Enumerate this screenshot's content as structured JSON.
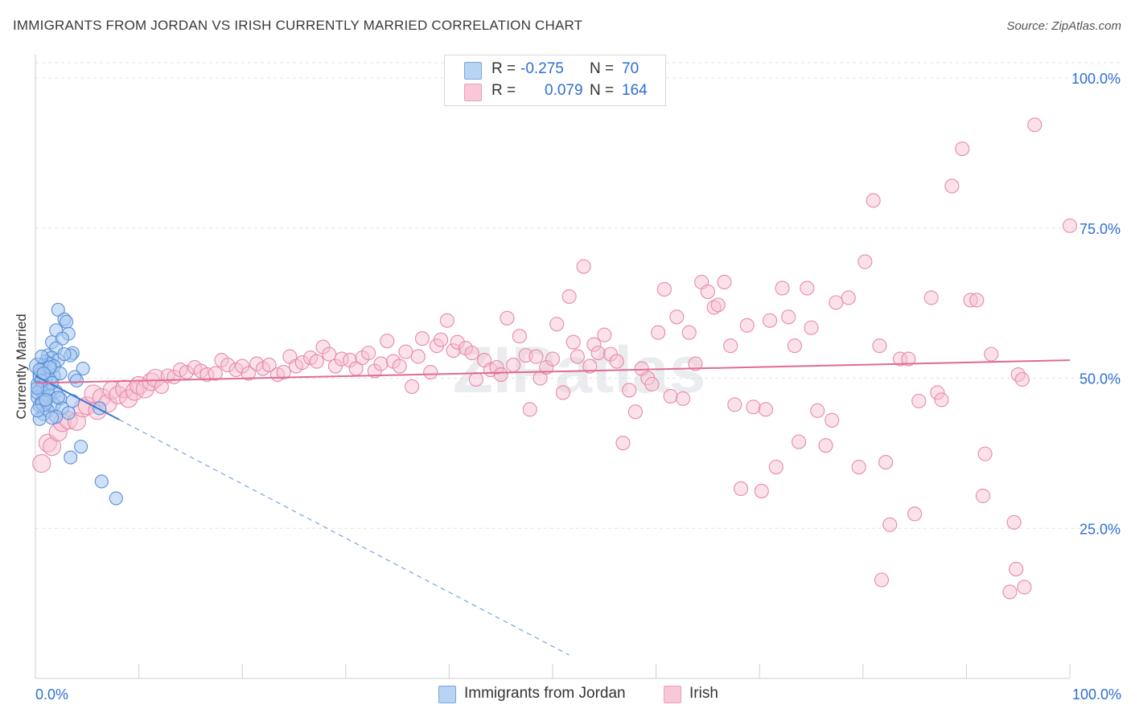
{
  "title": "IMMIGRANTS FROM JORDAN VS IRISH CURRENTLY MARRIED CORRELATION CHART",
  "source": "Source: ZipAtlas.com",
  "watermark": "ZIPatlas",
  "legend": {
    "series1": {
      "r_label": "R =",
      "r_value": "-0.275",
      "n_label": "N =",
      "n_value": "70"
    },
    "series2": {
      "r_label": "R =",
      "r_value": "0.079",
      "n_label": "N =",
      "n_value": "164"
    }
  },
  "colors": {
    "blue_fill": "#a8c8f0",
    "blue_stroke": "#5b8fd8",
    "blue_line": "#3a78d4",
    "pink_fill": "#f7bfd0",
    "pink_stroke": "#e78aa8",
    "pink_line": "#e06a93",
    "accent_text": "#2e6fd1"
  },
  "chart_data": {
    "type": "scatter",
    "title": "IMMIGRANTS FROM JORDAN VS IRISH CURRENTLY MARRIED CORRELATION CHART",
    "xlabel": "",
    "ylabel": "Currently Married",
    "xlim": [
      0,
      100
    ],
    "ylim": [
      0,
      100
    ],
    "x_tick_labels": [
      "0.0%",
      "100.0%"
    ],
    "y_tick_labels": [
      "25.0%",
      "50.0%",
      "75.0%",
      "100.0%"
    ],
    "y_ticks": [
      25,
      50,
      75,
      100
    ],
    "grid": true,
    "series": [
      {
        "name": "Immigrants from Jordan",
        "r": -0.275,
        "n": 70,
        "trend": {
          "x0": 0,
          "y0": 50.4,
          "x1": 8.1,
          "y1": 43.1,
          "dashed_to_x": 51.6
        },
        "points": [
          [
            2.2,
            61.4
          ],
          [
            2.8,
            59.8
          ],
          [
            3.0,
            59.4
          ],
          [
            2.0,
            58.0
          ],
          [
            3.2,
            57.4
          ],
          [
            1.6,
            56.0
          ],
          [
            2.6,
            56.6
          ],
          [
            2.0,
            55.0
          ],
          [
            3.6,
            54.2
          ],
          [
            1.2,
            53.8
          ],
          [
            1.6,
            53.4
          ],
          [
            3.4,
            53.8
          ],
          [
            1.0,
            52.8
          ],
          [
            2.2,
            53.0
          ],
          [
            0.8,
            52.2
          ],
          [
            4.6,
            51.6
          ],
          [
            0.6,
            51.2
          ],
          [
            1.2,
            51.0
          ],
          [
            0.4,
            50.6
          ],
          [
            1.8,
            50.4
          ],
          [
            0.8,
            50.0
          ],
          [
            3.8,
            50.2
          ],
          [
            4.0,
            49.6
          ],
          [
            1.4,
            49.8
          ],
          [
            0.6,
            49.4
          ],
          [
            0.2,
            49.0
          ],
          [
            1.0,
            48.6
          ],
          [
            0.4,
            48.0
          ],
          [
            2.0,
            47.8
          ],
          [
            0.8,
            47.4
          ],
          [
            1.4,
            47.0
          ],
          [
            0.2,
            46.8
          ],
          [
            2.4,
            46.6
          ],
          [
            3.6,
            46.2
          ],
          [
            0.6,
            46.0
          ],
          [
            1.8,
            45.6
          ],
          [
            0.4,
            45.4
          ],
          [
            2.6,
            45.0
          ],
          [
            1.2,
            44.6
          ],
          [
            3.2,
            44.2
          ],
          [
            0.8,
            44.0
          ],
          [
            2.0,
            43.6
          ],
          [
            1.6,
            43.4
          ],
          [
            0.4,
            43.2
          ],
          [
            6.2,
            45.0
          ],
          [
            4.4,
            38.6
          ],
          [
            3.4,
            36.8
          ],
          [
            6.4,
            32.8
          ],
          [
            7.8,
            30.0
          ],
          [
            0.2,
            52.0
          ],
          [
            0.6,
            48.8
          ],
          [
            1.0,
            50.0
          ],
          [
            0.2,
            47.6
          ],
          [
            1.4,
            52.4
          ],
          [
            0.4,
            50.2
          ],
          [
            2.8,
            54.0
          ],
          [
            1.6,
            49.2
          ],
          [
            0.8,
            45.8
          ],
          [
            0.2,
            44.6
          ],
          [
            1.2,
            48.2
          ],
          [
            2.2,
            46.8
          ],
          [
            0.6,
            53.6
          ],
          [
            1.8,
            52.0
          ],
          [
            0.4,
            51.4
          ],
          [
            2.4,
            50.8
          ],
          [
            1.0,
            46.4
          ],
          [
            0.6,
            49.6
          ],
          [
            1.4,
            51.8
          ],
          [
            0.2,
            48.4
          ],
          [
            0.8,
            50.8
          ]
        ]
      },
      {
        "name": "Irish",
        "r": 0.079,
        "n": 164,
        "trend": {
          "x0": 0,
          "y0": 49.2,
          "x1": 100,
          "y1": 53.0
        },
        "points": [
          [
            0.6,
            35.8
          ],
          [
            1.2,
            39.2
          ],
          [
            1.6,
            38.6
          ],
          [
            2.2,
            41.0
          ],
          [
            2.6,
            42.6
          ],
          [
            3.2,
            43.0
          ],
          [
            4.0,
            42.8
          ],
          [
            4.6,
            45.0
          ],
          [
            5.0,
            45.4
          ],
          [
            5.6,
            47.4
          ],
          [
            6.0,
            44.6
          ],
          [
            6.4,
            46.8
          ],
          [
            7.0,
            45.8
          ],
          [
            7.4,
            48.0
          ],
          [
            8.0,
            47.2
          ],
          [
            8.6,
            48.2
          ],
          [
            9.0,
            46.6
          ],
          [
            9.6,
            47.8
          ],
          [
            10.0,
            48.8
          ],
          [
            10.6,
            48.2
          ],
          [
            11.2,
            49.4
          ],
          [
            11.6,
            50.0
          ],
          [
            12.2,
            48.6
          ],
          [
            12.8,
            50.4
          ],
          [
            13.4,
            50.2
          ],
          [
            14.0,
            51.4
          ],
          [
            14.6,
            51.0
          ],
          [
            15.4,
            51.8
          ],
          [
            16.0,
            51.2
          ],
          [
            16.6,
            50.6
          ],
          [
            17.4,
            50.8
          ],
          [
            18.0,
            53.0
          ],
          [
            18.6,
            52.2
          ],
          [
            19.4,
            51.4
          ],
          [
            20.0,
            52.0
          ],
          [
            20.6,
            50.8
          ],
          [
            21.4,
            52.4
          ],
          [
            22.0,
            51.6
          ],
          [
            22.6,
            52.2
          ],
          [
            23.4,
            50.6
          ],
          [
            24.0,
            51.0
          ],
          [
            24.6,
            53.6
          ],
          [
            25.2,
            52.0
          ],
          [
            25.8,
            52.6
          ],
          [
            26.6,
            53.4
          ],
          [
            27.2,
            52.8
          ],
          [
            27.8,
            55.2
          ],
          [
            28.4,
            54.0
          ],
          [
            29.0,
            52.0
          ],
          [
            29.6,
            53.2
          ],
          [
            30.4,
            53.0
          ],
          [
            31.0,
            51.6
          ],
          [
            31.6,
            53.4
          ],
          [
            32.2,
            54.2
          ],
          [
            32.8,
            51.2
          ],
          [
            33.4,
            52.4
          ],
          [
            34.0,
            56.2
          ],
          [
            34.6,
            52.8
          ],
          [
            35.2,
            52.0
          ],
          [
            35.8,
            54.4
          ],
          [
            36.4,
            48.6
          ],
          [
            37.0,
            53.6
          ],
          [
            37.4,
            56.6
          ],
          [
            38.2,
            51.0
          ],
          [
            38.8,
            55.4
          ],
          [
            39.2,
            56.4
          ],
          [
            39.8,
            59.6
          ],
          [
            40.4,
            54.6
          ],
          [
            40.8,
            56.0
          ],
          [
            41.6,
            55.0
          ],
          [
            42.2,
            54.2
          ],
          [
            42.6,
            49.8
          ],
          [
            43.4,
            53.0
          ],
          [
            44.0,
            51.4
          ],
          [
            44.6,
            51.8
          ],
          [
            45.0,
            50.6
          ],
          [
            45.6,
            60.0
          ],
          [
            46.2,
            52.2
          ],
          [
            46.8,
            57.0
          ],
          [
            47.4,
            53.8
          ],
          [
            47.8,
            44.8
          ],
          [
            48.4,
            53.6
          ],
          [
            48.8,
            50.0
          ],
          [
            49.4,
            51.8
          ],
          [
            50.0,
            53.2
          ],
          [
            50.4,
            59.0
          ],
          [
            51.0,
            47.6
          ],
          [
            51.6,
            63.6
          ],
          [
            52.0,
            56.0
          ],
          [
            52.4,
            53.6
          ],
          [
            53.0,
            68.6
          ],
          [
            53.6,
            52.0
          ],
          [
            54.0,
            55.6
          ],
          [
            54.4,
            54.2
          ],
          [
            55.0,
            57.2
          ],
          [
            55.6,
            54.0
          ],
          [
            56.2,
            52.8
          ],
          [
            56.8,
            39.2
          ],
          [
            57.4,
            48.0
          ],
          [
            58.0,
            44.4
          ],
          [
            58.6,
            51.6
          ],
          [
            59.2,
            50.0
          ],
          [
            59.6,
            49.0
          ],
          [
            60.2,
            57.6
          ],
          [
            60.8,
            64.8
          ],
          [
            61.4,
            47.0
          ],
          [
            62.0,
            60.2
          ],
          [
            62.6,
            46.6
          ],
          [
            63.2,
            57.6
          ],
          [
            63.8,
            52.4
          ],
          [
            64.4,
            66.0
          ],
          [
            65.0,
            64.4
          ],
          [
            65.6,
            61.8
          ],
          [
            66.0,
            62.2
          ],
          [
            66.6,
            66.0
          ],
          [
            67.2,
            55.4
          ],
          [
            67.6,
            45.6
          ],
          [
            68.2,
            31.6
          ],
          [
            68.8,
            58.8
          ],
          [
            69.4,
            45.2
          ],
          [
            70.2,
            31.2
          ],
          [
            70.6,
            44.8
          ],
          [
            71.0,
            59.6
          ],
          [
            71.6,
            35.2
          ],
          [
            72.2,
            65.0
          ],
          [
            72.8,
            60.2
          ],
          [
            73.4,
            55.4
          ],
          [
            73.8,
            39.4
          ],
          [
            74.6,
            65.0
          ],
          [
            75.0,
            58.4
          ],
          [
            75.6,
            44.6
          ],
          [
            76.4,
            38.8
          ],
          [
            77.0,
            43.0
          ],
          [
            77.4,
            62.6
          ],
          [
            78.6,
            63.4
          ],
          [
            79.6,
            35.2
          ],
          [
            80.2,
            69.4
          ],
          [
            81.0,
            79.6
          ],
          [
            81.6,
            55.4
          ],
          [
            82.2,
            36.0
          ],
          [
            82.6,
            25.6
          ],
          [
            83.6,
            53.2
          ],
          [
            84.4,
            53.2
          ],
          [
            85.0,
            27.4
          ],
          [
            85.4,
            46.2
          ],
          [
            86.6,
            63.4
          ],
          [
            87.2,
            47.6
          ],
          [
            87.6,
            46.4
          ],
          [
            88.6,
            82.0
          ],
          [
            89.6,
            88.2
          ],
          [
            90.4,
            63.0
          ],
          [
            91.0,
            63.0
          ],
          [
            91.6,
            30.4
          ],
          [
            91.8,
            37.4
          ],
          [
            92.4,
            54.0
          ],
          [
            94.6,
            26.0
          ],
          [
            94.8,
            18.2
          ],
          [
            95.6,
            15.2
          ],
          [
            94.2,
            14.4
          ],
          [
            95.0,
            50.6
          ],
          [
            81.8,
            16.4
          ],
          [
            96.6,
            92.2
          ],
          [
            100.0,
            75.4
          ],
          [
            95.4,
            49.8
          ]
        ]
      }
    ]
  },
  "bottom_legend": {
    "series1": "Immigrants from Jordan",
    "series2": "Irish"
  }
}
